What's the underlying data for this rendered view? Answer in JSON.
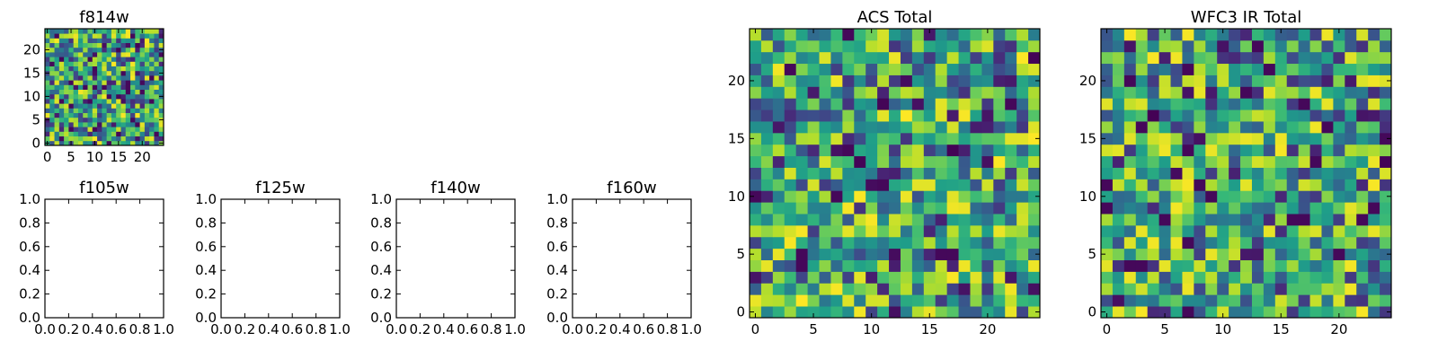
{
  "chart_data": [
    {
      "type": "heatmap",
      "title": "f814w",
      "xlabel": "",
      "ylabel": "",
      "grid_size": 25,
      "xlim": [
        -0.5,
        24.5
      ],
      "ylim": [
        -0.5,
        24.5
      ],
      "xticks": [
        0,
        5,
        10,
        15,
        20
      ],
      "yticks": [
        0,
        5,
        10,
        15,
        20
      ],
      "tick_labels_x": [
        "0",
        "5",
        "10",
        "15",
        "20"
      ],
      "tick_labels_y": [
        "0",
        "5",
        "10",
        "15",
        "20"
      ],
      "colormap": "viridis",
      "random_seed": 814
    },
    {
      "type": "empty",
      "title": "f105w",
      "xlim": [
        0,
        1
      ],
      "ylim": [
        0,
        1
      ],
      "tick_labels_x": [
        "0.0",
        "0.2",
        "0.4",
        "0.6",
        "0.8",
        "1.0"
      ],
      "tick_labels_y": [
        "0.0",
        "0.2",
        "0.4",
        "0.6",
        "0.8",
        "1.0"
      ]
    },
    {
      "type": "empty",
      "title": "f125w",
      "xlim": [
        0,
        1
      ],
      "ylim": [
        0,
        1
      ],
      "tick_labels_x": [
        "0.0",
        "0.2",
        "0.4",
        "0.6",
        "0.8",
        "1.0"
      ],
      "tick_labels_y": [
        "0.0",
        "0.2",
        "0.4",
        "0.6",
        "0.8",
        "1.0"
      ]
    },
    {
      "type": "empty",
      "title": "f140w",
      "xlim": [
        0,
        1
      ],
      "ylim": [
        0,
        1
      ],
      "tick_labels_x": [
        "0.0",
        "0.2",
        "0.4",
        "0.6",
        "0.8",
        "1.0"
      ],
      "tick_labels_y": [
        "0.0",
        "0.2",
        "0.4",
        "0.6",
        "0.8",
        "1.0"
      ]
    },
    {
      "type": "empty",
      "title": "f160w",
      "xlim": [
        0,
        1
      ],
      "ylim": [
        0,
        1
      ],
      "tick_labels_x": [
        "0.0",
        "0.2",
        "0.4",
        "0.6",
        "0.8",
        "1.0"
      ],
      "tick_labels_y": [
        "0.0",
        "0.2",
        "0.4",
        "0.6",
        "0.8",
        "1.0"
      ]
    },
    {
      "type": "heatmap",
      "title": "ACS Total",
      "grid_size": 25,
      "xlim": [
        -0.5,
        24.5
      ],
      "ylim": [
        -0.5,
        24.5
      ],
      "tick_labels_x": [
        "0",
        "5",
        "10",
        "15",
        "20"
      ],
      "tick_labels_y": [
        "0",
        "5",
        "10",
        "15",
        "20"
      ],
      "colormap": "viridis",
      "random_seed": 4242
    },
    {
      "type": "heatmap",
      "title": "WFC3 IR Total",
      "grid_size": 25,
      "xlim": [
        -0.5,
        24.5
      ],
      "ylim": [
        -0.5,
        24.5
      ],
      "tick_labels_x": [
        "0",
        "5",
        "10",
        "15",
        "20"
      ],
      "tick_labels_y": [
        "0",
        "5",
        "10",
        "15",
        "20"
      ],
      "colormap": "viridis",
      "random_seed": 3333
    }
  ],
  "colors": {
    "viridis_dark": "#440154",
    "viridis_mid": "#21908d",
    "viridis_light": "#fde725",
    "axes": "#000000",
    "background": "#ffffff"
  }
}
